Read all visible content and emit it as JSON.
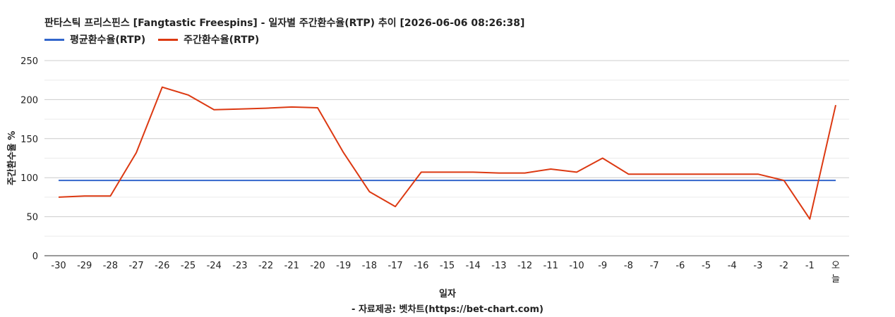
{
  "title": "판타스틱 프리스핀스 [Fangtastic Freespins] - 일자별 주간환수율(RTP) 추이 [2026-06-06 08:26:38]",
  "footer": "- 자료제공: 벳차트(https://bet-chart.com)",
  "chart_data": {
    "type": "line",
    "categories": [
      "-30",
      "-29",
      "-28",
      "-27",
      "-26",
      "-25",
      "-24",
      "-23",
      "-22",
      "-21",
      "-20",
      "-19",
      "-18",
      "-17",
      "-16",
      "-15",
      "-14",
      "-13",
      "-12",
      "-11",
      "-10",
      "-9",
      "-8",
      "-7",
      "-6",
      "-5",
      "-4",
      "-3",
      "-2",
      "-1",
      "오늘"
    ],
    "xlabel": "일자",
    "ylabel": "주간환수율 %",
    "ylim": [
      0,
      250
    ],
    "yticks": [
      0,
      50,
      100,
      150,
      200,
      250
    ],
    "grid": true,
    "legend_position": "top-left",
    "series": [
      {
        "name": "평균환수율(RTP)",
        "color": "#3366cc",
        "values": [
          96.5,
          96.5,
          96.5,
          96.5,
          96.5,
          96.5,
          96.5,
          96.5,
          96.5,
          96.5,
          96.5,
          96.5,
          96.5,
          96.5,
          96.5,
          96.5,
          96.5,
          96.5,
          96.5,
          96.5,
          96.5,
          96.5,
          96.5,
          96.5,
          96.5,
          96.5,
          96.5,
          96.5,
          96.5,
          96.5,
          96.5
        ]
      },
      {
        "name": "주간환수율(RTP)",
        "color": "#dc3912",
        "values": [
          75,
          76.5,
          76.5,
          132,
          216,
          206,
          187,
          188,
          189,
          190.5,
          189.5,
          132,
          82,
          63,
          107,
          107,
          107,
          106,
          106,
          111,
          107,
          125,
          104.5,
          104.5,
          104.5,
          104.5,
          104.5,
          104.5,
          96.5,
          47,
          193
        ]
      }
    ]
  }
}
